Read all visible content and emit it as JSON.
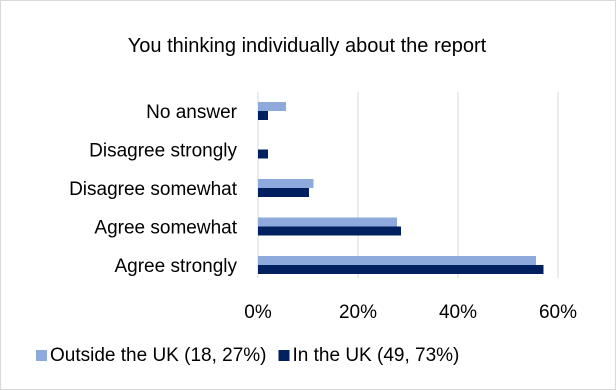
{
  "chart_data": {
    "type": "bar",
    "orientation": "horizontal",
    "title": "You thinking individually about the report",
    "xlabel": "",
    "ylabel": "",
    "categories": [
      "No answer",
      "Disagree strongly",
      "Disagree somewhat",
      "Agree somewhat",
      "Agree strongly"
    ],
    "series": [
      {
        "name": "Outside the UK (18, 27%)",
        "color": "#8EA9DB",
        "values": [
          5.6,
          0,
          11.1,
          27.8,
          55.6
        ]
      },
      {
        "name": "In the UK (49, 73%)",
        "color": "#002060",
        "values": [
          2.0,
          2.0,
          10.2,
          28.6,
          57.1
        ]
      }
    ],
    "xlim": [
      0,
      60
    ],
    "x_ticks": [
      "0%",
      "20%",
      "40%",
      "60%"
    ],
    "grid": true,
    "legend_position": "bottom"
  }
}
